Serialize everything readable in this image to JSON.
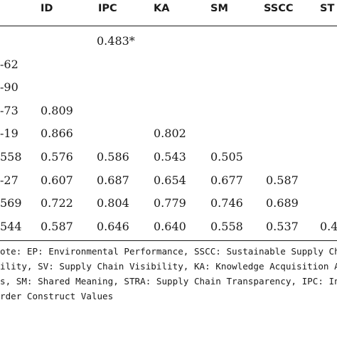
{
  "table": {
    "headers": [
      "ID",
      "IPC",
      "KA",
      "SM",
      "SSCC",
      "ST"
    ],
    "rows": [
      {
        "first": "",
        "values": [
          "",
          "0.483*",
          "",
          "",
          "",
          ""
        ]
      },
      {
        "first": "-62",
        "values": [
          "",
          "",
          "",
          "",
          "",
          ""
        ]
      },
      {
        "first": "-90",
        "values": [
          "",
          "",
          "",
          "",
          "",
          ""
        ]
      },
      {
        "first": "-73",
        "values": [
          "0.809",
          "",
          "",
          "",
          "",
          ""
        ]
      },
      {
        "first": "-19",
        "values": [
          "0.866",
          "",
          "0.802",
          "",
          "",
          ""
        ]
      },
      {
        "first": "558",
        "values": [
          "0.576",
          "0.586",
          "0.543",
          "0.505",
          "",
          ""
        ]
      },
      {
        "first": "-27",
        "values": [
          "0.607",
          "0.687",
          "0.654",
          "0.677",
          "0.587",
          ""
        ]
      },
      {
        "first": "569",
        "values": [
          "0.722",
          "0.804",
          "0.779",
          "0.746",
          "0.689",
          ""
        ]
      },
      {
        "first": "544",
        "values": [
          "0.587",
          "0.646",
          "0.640",
          "0.558",
          "0.537",
          "0.4"
        ]
      }
    ]
  },
  "note": {
    "lines": [
      "ote: EP: Environmental Performance, SSCC: Sustainable Supply Ch",
      "ility, SV: Supply Chain Visibility, KA: Knowledge Acquisition Activ",
      "s, SM: Shared Meaning, STRA: Supply Chain Transparency, IPC: In",
      "rder Construct Values"
    ]
  }
}
